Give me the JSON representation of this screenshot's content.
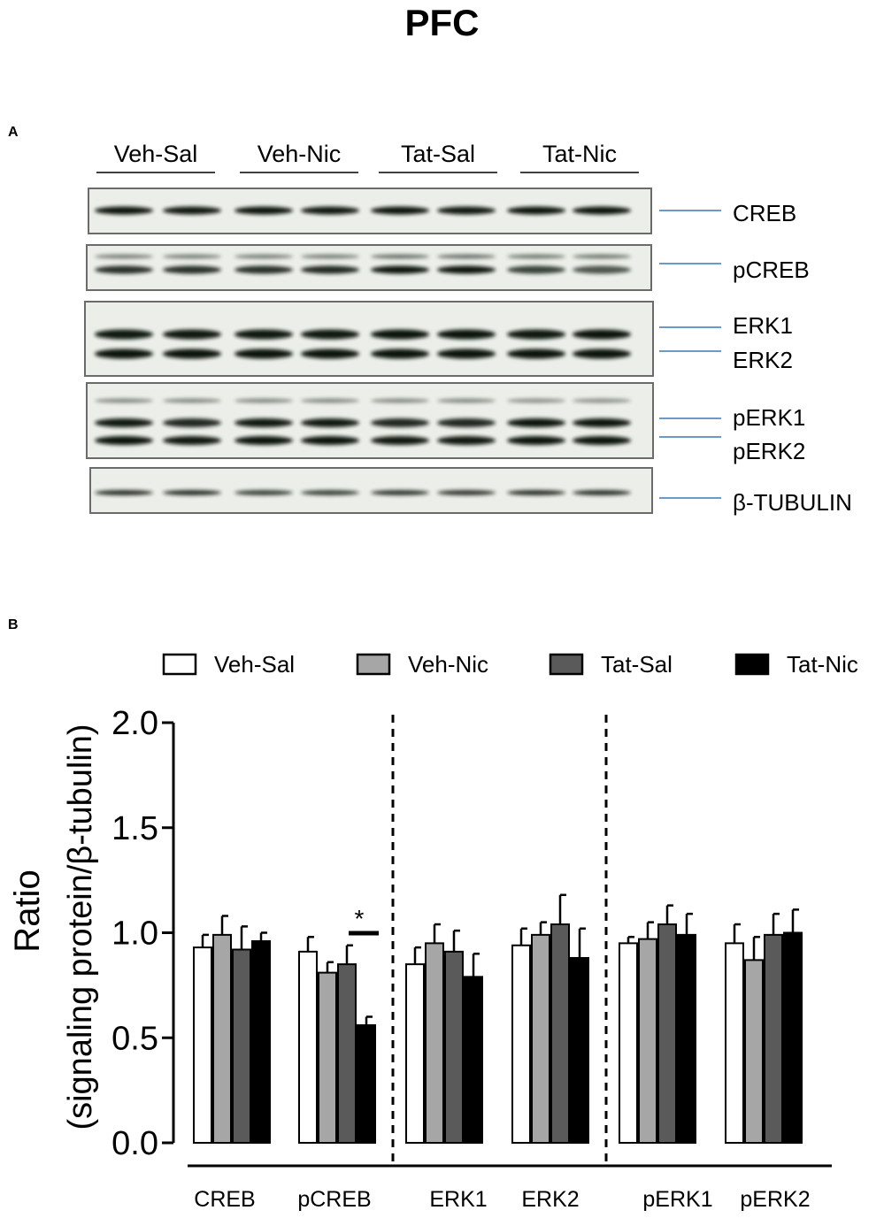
{
  "figure": {
    "title": "PFC",
    "panel_a_label": "A",
    "panel_b_label": "B"
  },
  "blot": {
    "groups": [
      "Veh-Sal",
      "Veh-Nic",
      "Tat-Sal",
      "Tat-Nic"
    ],
    "bands": [
      "CREB",
      "pCREB",
      "ERK1",
      "ERK2",
      "pERK1",
      "pERK2",
      "β-TUBULIN"
    ],
    "leader_color": "#3a78b8"
  },
  "colors": {
    "Veh-Sal": "#ffffff",
    "Veh-Nic": "#a6a6a6",
    "Tat-Sal": "#5a5a5a",
    "Tat-Nic": "#000000"
  },
  "chart_data": {
    "type": "bar",
    "ylabel_line1": "Ratio",
    "ylabel_line2": "(signaling protein/β-tubulin)",
    "ylim": [
      0,
      2.0
    ],
    "yticks": [
      "0.0",
      "0.5",
      "1.0",
      "1.5",
      "2.0"
    ],
    "categories": [
      "CREB",
      "pCREB",
      "ERK1",
      "ERK2",
      "pERK1",
      "pERK2"
    ],
    "series": [
      {
        "name": "Veh-Sal",
        "values": [
          0.93,
          0.91,
          0.85,
          0.94,
          0.95,
          0.95
        ],
        "errors": [
          0.06,
          0.07,
          0.08,
          0.08,
          0.03,
          0.09
        ]
      },
      {
        "name": "Veh-Nic",
        "values": [
          0.99,
          0.81,
          0.95,
          0.99,
          0.97,
          0.87
        ],
        "errors": [
          0.09,
          0.05,
          0.09,
          0.06,
          0.08,
          0.11
        ]
      },
      {
        "name": "Tat-Sal",
        "values": [
          0.92,
          0.85,
          0.91,
          1.04,
          1.04,
          0.99
        ],
        "errors": [
          0.11,
          0.09,
          0.1,
          0.14,
          0.09,
          0.1
        ]
      },
      {
        "name": "Tat-Nic",
        "values": [
          0.96,
          0.56,
          0.79,
          0.88,
          0.99,
          1.0
        ],
        "errors": [
          0.04,
          0.04,
          0.11,
          0.14,
          0.1,
          0.11
        ]
      }
    ],
    "significance": {
      "category": "pCREB",
      "mark": "*"
    },
    "grid": false,
    "legend_position": "top"
  }
}
